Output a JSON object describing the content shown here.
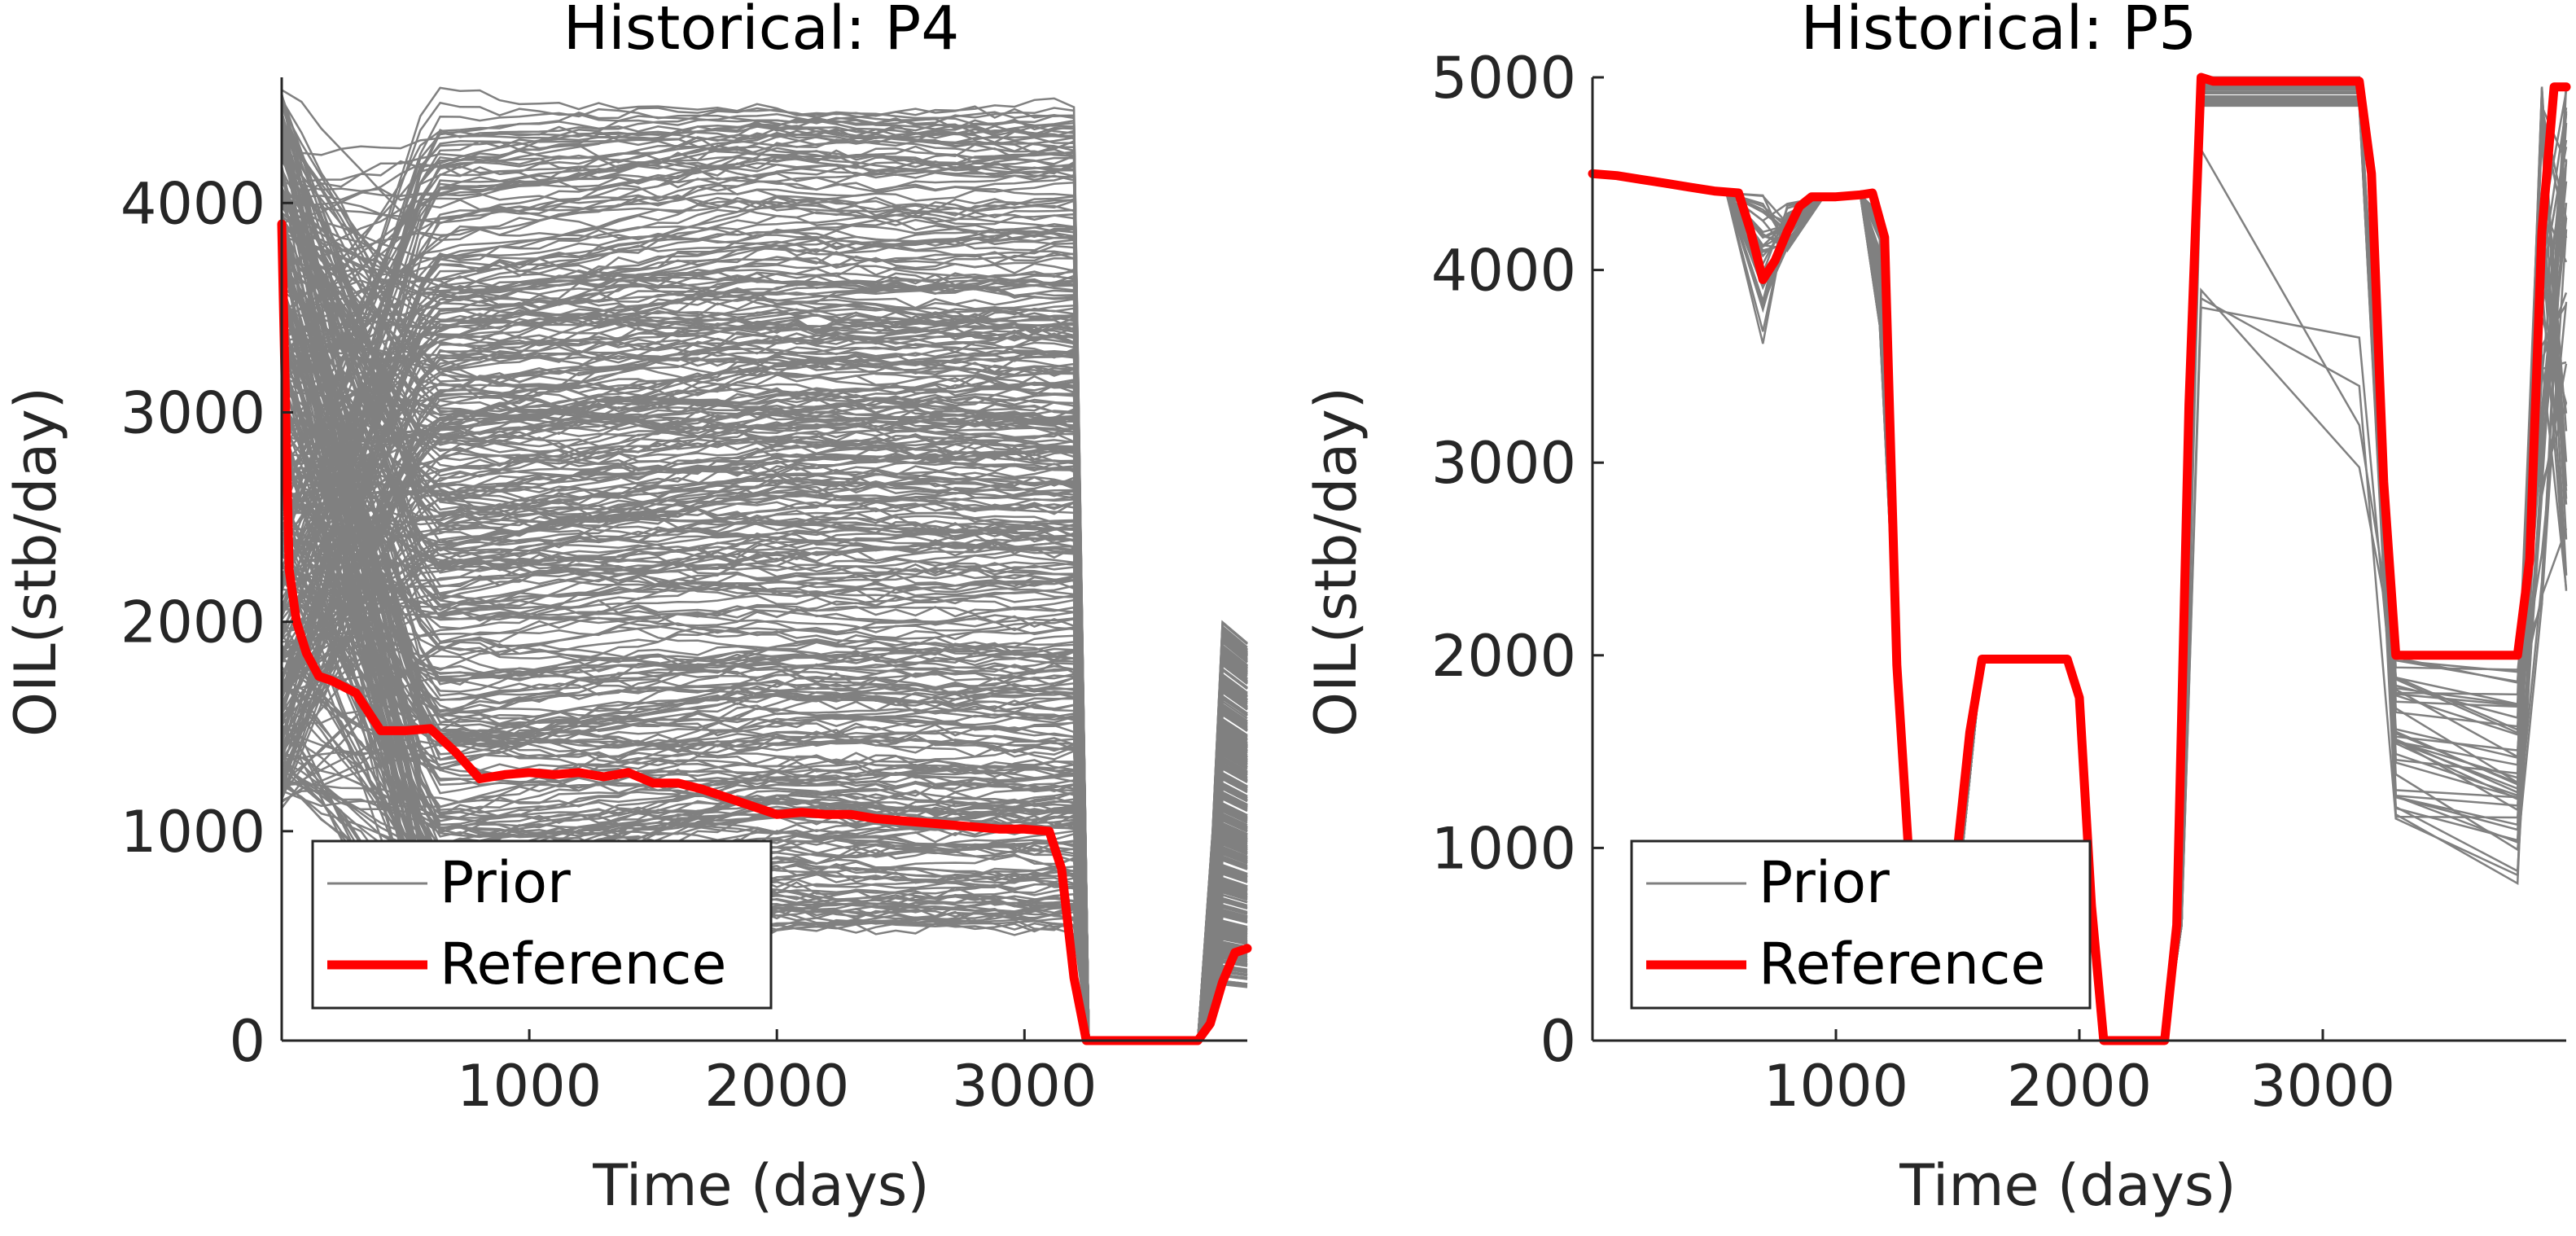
{
  "chart_data": [
    {
      "type": "line",
      "title": "Historical: P4",
      "xlabel": "Time (days)",
      "ylabel": "OIL(stb/day)",
      "xlim": [
        0,
        3900
      ],
      "ylim": [
        0,
        4600
      ],
      "xticks": [
        1000,
        2000,
        3000
      ],
      "yticks": [
        0,
        1000,
        2000,
        3000,
        4000
      ],
      "legend": {
        "location": "bottom-left",
        "entries": [
          "Prior",
          "Reference"
        ]
      },
      "colors": {
        "prior": "#808080",
        "reference": "#ff0000"
      },
      "series": [
        {
          "name": "Reference",
          "x": [
            0,
            30,
            60,
            100,
            150,
            200,
            300,
            400,
            500,
            600,
            700,
            800,
            900,
            1000,
            1100,
            1200,
            1300,
            1400,
            1500,
            1600,
            1700,
            1800,
            1900,
            2000,
            2100,
            2200,
            2300,
            2400,
            2500,
            2600,
            2700,
            2800,
            2900,
            3000,
            3100,
            3150,
            3200,
            3250,
            3300,
            3700,
            3750,
            3800,
            3850,
            3900
          ],
          "y": [
            3900,
            2250,
            2000,
            1850,
            1740,
            1720,
            1660,
            1480,
            1480,
            1490,
            1380,
            1250,
            1270,
            1280,
            1270,
            1280,
            1260,
            1280,
            1230,
            1230,
            1200,
            1160,
            1120,
            1080,
            1090,
            1080,
            1080,
            1060,
            1050,
            1040,
            1030,
            1020,
            1010,
            1010,
            1000,
            820,
            300,
            0,
            0,
            0,
            80,
            280,
            420,
            440
          ]
        },
        {
          "name": "Prior",
          "count": 400,
          "start_range": [
            1100,
            4550
          ],
          "plateau_range": [
            550,
            4450
          ],
          "shutin_days": [
            3250,
            3700
          ],
          "restart_range": [
            260,
            2000
          ]
        }
      ]
    },
    {
      "type": "line",
      "title": "Historical: P5",
      "xlabel": "Time (days)",
      "ylabel": "OIL(stb/day)",
      "xlim": [
        0,
        4000
      ],
      "ylim": [
        0,
        5000
      ],
      "xticks": [
        1000,
        2000,
        3000
      ],
      "yticks": [
        0,
        1000,
        2000,
        3000,
        4000,
        5000
      ],
      "legend": {
        "location": "bottom-left",
        "entries": [
          "Prior",
          "Reference"
        ]
      },
      "colors": {
        "prior": "#808080",
        "reference": "#ff0000"
      },
      "series": [
        {
          "name": "Reference",
          "x": [
            0,
            100,
            200,
            300,
            400,
            500,
            600,
            650,
            700,
            750,
            800,
            850,
            900,
            1000,
            1100,
            1150,
            1200,
            1250,
            1300,
            1350,
            1400,
            1450,
            1500,
            1550,
            1600,
            1650,
            1700,
            1800,
            1900,
            1950,
            2000,
            2050,
            2100,
            2150,
            2200,
            2300,
            2350,
            2400,
            2450,
            2500,
            2550,
            3100,
            3150,
            3200,
            3250,
            3300,
            3350,
            3400,
            3800,
            3850,
            3900,
            3950,
            4000
          ],
          "y": [
            4500,
            4490,
            4470,
            4450,
            4430,
            4410,
            4400,
            4200,
            3950,
            4050,
            4200,
            4330,
            4380,
            4380,
            4390,
            4400,
            4170,
            1950,
            950,
            950,
            960,
            970,
            1000,
            1600,
            1980,
            1980,
            1980,
            1980,
            1980,
            1980,
            1780,
            700,
            0,
            0,
            0,
            0,
            0,
            600,
            3300,
            5000,
            4980,
            4980,
            4980,
            4500,
            2900,
            2000,
            2000,
            2000,
            2000,
            2500,
            4200,
            4950,
            4950
          ]
        },
        {
          "name": "Prior",
          "count": 40,
          "shutin_days": [
            2100,
            2350
          ],
          "plateau_2": 1980,
          "plateau_3": [
            4850,
            5000
          ],
          "low_range": [
            1150,
            1990
          ]
        }
      ]
    }
  ]
}
